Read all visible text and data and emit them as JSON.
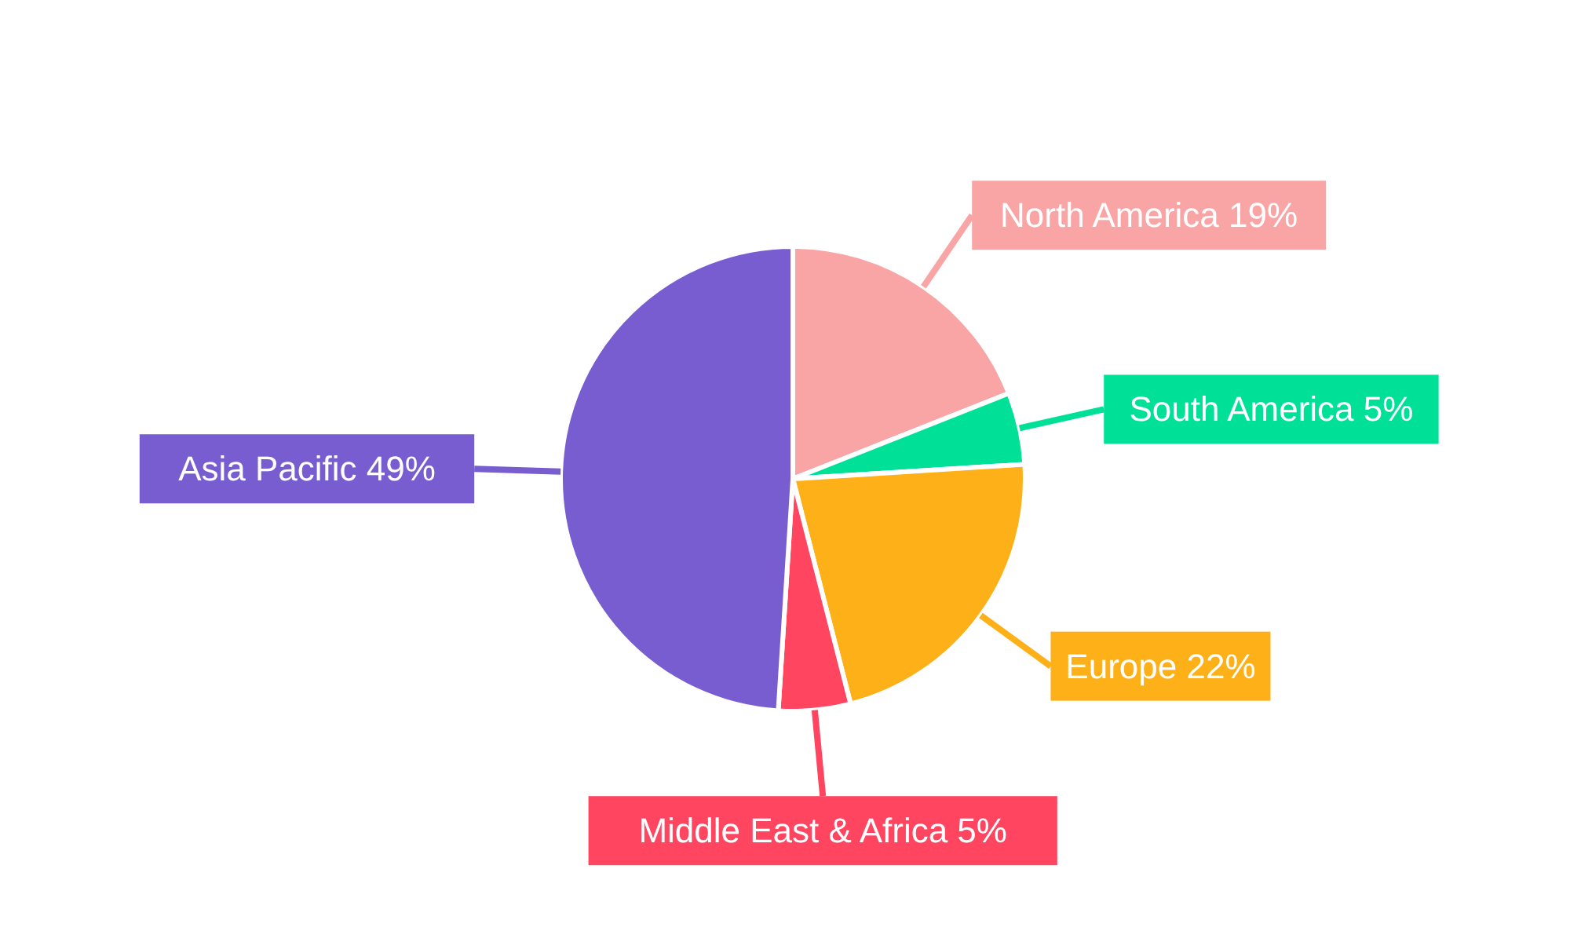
{
  "chart_data": {
    "type": "pie",
    "categories": [
      "North America",
      "South America",
      "Europe",
      "Middle East & Africa",
      "Asia Pacific"
    ],
    "values": [
      19,
      5,
      22,
      5,
      49
    ],
    "value_labels": [
      "19%",
      "5%",
      "22%",
      "5%",
      "49%"
    ],
    "colors": [
      "#f9a5a6",
      "#00e096",
      "#feb019",
      "#ff4560",
      "#775dd0"
    ],
    "legend": false
  }
}
